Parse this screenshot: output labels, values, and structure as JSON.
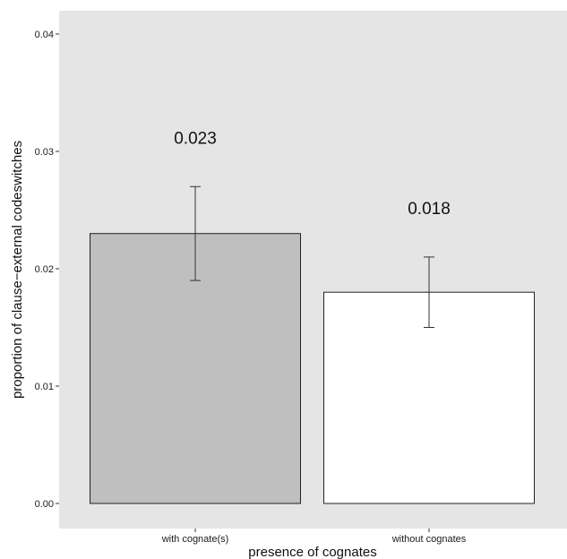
{
  "chart_data": {
    "type": "bar",
    "categories": [
      "with cognate(s)",
      "without cognates"
    ],
    "values": [
      0.023,
      0.018
    ],
    "error_low": [
      0.019,
      0.015
    ],
    "error_high": [
      0.027,
      0.021
    ],
    "data_labels": [
      "0.023",
      "0.018"
    ],
    "bar_colors": [
      "#bfbfbf",
      "#ffffff"
    ],
    "xlabel": "presence of cognates",
    "ylabel": "proportion of clause−external codeswitches",
    "ylim": [
      0,
      0.04
    ],
    "yticks": [
      0.0,
      0.01,
      0.02,
      0.03,
      0.04
    ],
    "ytick_labels": [
      "0.00",
      "0.01",
      "0.02",
      "0.03",
      "0.04"
    ],
    "grid": false,
    "panel_color": "#e5e5e5"
  }
}
